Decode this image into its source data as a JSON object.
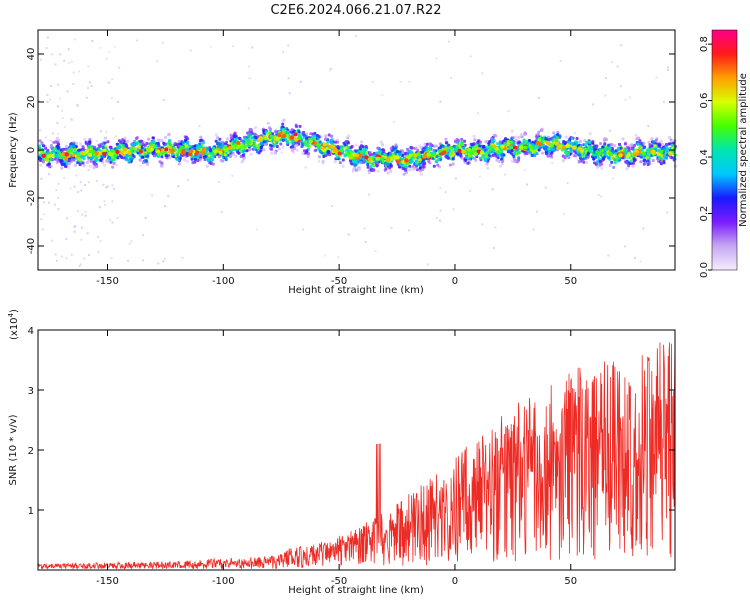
{
  "title": "C2E6.2024.066.21.07.R22",
  "chart_data": [
    {
      "type": "heatmap",
      "xlabel": "Height of straight line (km)",
      "ylabel": "Frequency (Hz)",
      "xlim": [
        -180,
        95
      ],
      "ylim": [
        -50,
        50
      ],
      "xticks": [
        -150,
        -100,
        -50,
        0,
        50
      ],
      "yticks": [
        -40,
        -20,
        0,
        20,
        40
      ],
      "ytick_labels": [
        "-40",
        "-20",
        "0",
        "20",
        "40"
      ],
      "ridge": {
        "height_km": [
          -180,
          -165,
          -150,
          -135,
          -120,
          -105,
          -90,
          -80,
          -72,
          -65,
          -55,
          -45,
          -35,
          -28,
          -20,
          -10,
          0,
          10,
          20,
          30,
          40,
          50,
          60,
          70,
          80,
          95
        ],
        "frequency_hz": [
          -2,
          -2,
          -1,
          0,
          0,
          -1,
          3,
          5,
          6,
          4,
          1,
          -2,
          -4,
          -3,
          -4,
          -2,
          0,
          -1,
          1,
          1,
          3,
          1,
          -1,
          -2,
          -1,
          -1
        ]
      },
      "colorbar": {
        "label": "Normalized spectral amplitude",
        "range": [
          0,
          0.85
        ],
        "ticks": [
          0.0,
          0.2,
          0.4,
          0.6,
          0.8
        ],
        "tick_labels": [
          "0.0",
          "0.2",
          "0.4",
          "0.6",
          "0.8"
        ],
        "colormap": [
          "#f6ecff",
          "#c6a8f2",
          "#7a1cff",
          "#1a1aff",
          "#00c8ff",
          "#00e6b0",
          "#44ff00",
          "#d8ff00",
          "#ffa000",
          "#ff1a1a",
          "#ff0088"
        ]
      }
    },
    {
      "type": "line",
      "xlabel": "Height of straight line (km)",
      "ylabel": "SNR (10 * v/v)",
      "ylabel_exponent": "(x10",
      "exponent_power": "4",
      "exponent_close": ")",
      "xlim": [
        -180,
        95
      ],
      "ylim": [
        0,
        4
      ],
      "xticks": [
        -150,
        -100,
        -50,
        0,
        50
      ],
      "yticks": [
        1,
        2,
        3,
        4
      ],
      "envelope": {
        "height_km": [
          -180,
          -150,
          -120,
          -100,
          -80,
          -74,
          -60,
          -45,
          -30,
          -15,
          0,
          15,
          30,
          45,
          55,
          65,
          75,
          85,
          95
        ],
        "snr_x1e4": [
          0.12,
          0.15,
          0.18,
          0.25,
          0.3,
          0.35,
          0.45,
          0.65,
          1.0,
          1.4,
          1.9,
          2.4,
          2.9,
          3.3,
          3.4,
          3.5,
          3.6,
          3.8,
          3.9
        ]
      },
      "color": "#ee2a24"
    }
  ]
}
